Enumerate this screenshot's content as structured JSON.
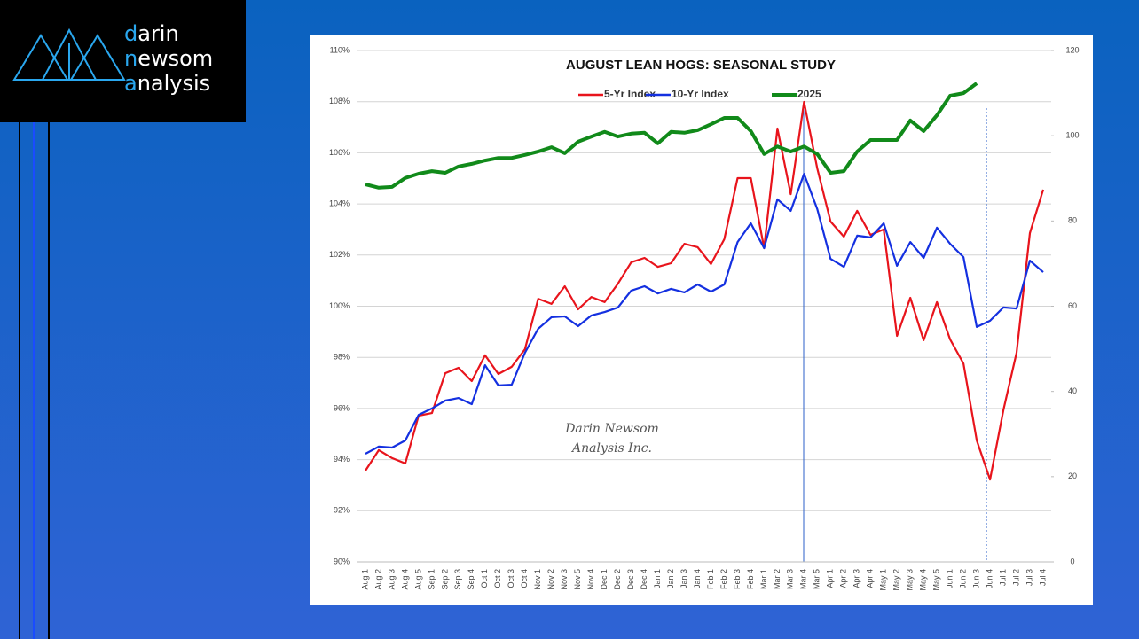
{
  "logo": {
    "lines": [
      "darin",
      "newsom",
      "analysis"
    ]
  },
  "watermark": [
    "Darin Newsom",
    "Analysis Inc."
  ],
  "chart_data": {
    "type": "line",
    "title": "AUGUST LEAN HOGS: SEASONAL STUDY",
    "categories": [
      "Aug 1",
      "Aug 2",
      "Aug 3",
      "Aug 4",
      "Aug 5",
      "Sep 1",
      "Sep 2",
      "Sep 3",
      "Sep 4",
      "Oct 1",
      "Oct 2",
      "Oct 3",
      "Oct 4",
      "Nov 1",
      "Nov 2",
      "Nov 3",
      "Nov 5",
      "Nov 4",
      "Dec 1",
      "Dec 2",
      "Dec 3",
      "Dec 4",
      "Jan 1",
      "Jan 2",
      "Jan 3",
      "Jan 4",
      "Feb 1",
      "Feb 2",
      "Feb 3",
      "Feb 4",
      "Mar 1",
      "Mar 2",
      "Mar 3",
      "Mar 4",
      "Mar 5",
      "Apr 1",
      "Apr 2",
      "Apr 3",
      "Apr 4",
      "May 1",
      "May 2",
      "May 3",
      "May 4",
      "May 5",
      "Jun 1",
      "Jun 2",
      "Jun 3",
      "Jun 4",
      "Jul 1",
      "Jul 2",
      "Jul 3",
      "Jul 4"
    ],
    "series": [
      {
        "name": "5-Yr Index",
        "color": "#e8141c",
        "values": [
          93.57,
          94.37,
          94.06,
          93.85,
          95.72,
          95.82,
          97.38,
          97.59,
          97.07,
          98.08,
          97.35,
          97.63,
          98.32,
          100.29,
          100.09,
          100.78,
          99.88,
          100.36,
          100.16,
          100.88,
          101.72,
          101.89,
          101.54,
          101.68,
          102.44,
          102.31,
          101.65,
          102.62,
          105.01,
          105.01,
          102.27,
          106.95,
          104.38,
          107.99,
          105.39,
          103.31,
          102.72,
          103.73,
          102.79,
          103.0,
          98.84,
          100.33,
          98.67,
          100.16,
          98.7,
          97.76,
          94.75,
          93.22,
          95.93,
          98.18,
          102.86,
          104.56
        ]
      },
      {
        "name": "10-Yr Index",
        "color": "#1430e0",
        "values": [
          94.23,
          94.51,
          94.47,
          94.75,
          95.75,
          96.0,
          96.31,
          96.41,
          96.17,
          97.69,
          96.9,
          96.93,
          98.18,
          99.12,
          99.57,
          99.6,
          99.22,
          99.64,
          99.77,
          99.95,
          100.61,
          100.78,
          100.5,
          100.68,
          100.54,
          100.85,
          100.57,
          100.85,
          102.51,
          103.24,
          102.27,
          104.18,
          103.73,
          105.18,
          103.8,
          101.85,
          101.54,
          102.76,
          102.69,
          103.24,
          101.58,
          102.51,
          101.89,
          103.07,
          102.44,
          101.92,
          99.19,
          99.43,
          99.95,
          99.91,
          101.78,
          101.33
        ]
      },
      {
        "name": "2025",
        "color": "#118a1a",
        "axis": "y2",
        "values": [
          88.6,
          87.8,
          88.0,
          90.1,
          91.1,
          91.7,
          91.3,
          92.8,
          93.4,
          94.2,
          94.8,
          94.8,
          95.5,
          96.3,
          97.3,
          95.9,
          98.6,
          99.8,
          100.9,
          99.8,
          100.5,
          100.7,
          98.2,
          100.9,
          100.7,
          101.3,
          102.7,
          104.2,
          104.2,
          101.1,
          95.7,
          97.5,
          96.3,
          97.5,
          95.7,
          91.3,
          91.7,
          96.3,
          99.0,
          99.0,
          99.0,
          103.6,
          101.1,
          104.8,
          109.4,
          110.0,
          112.3,
          null,
          null,
          null,
          null,
          null
        ]
      }
    ],
    "ylim": [
      90,
      110
    ],
    "yticks": [
      {
        "value": 90,
        "label": "90%"
      },
      {
        "value": 92,
        "label": "92%"
      },
      {
        "value": 94,
        "label": "94%"
      },
      {
        "value": 96,
        "label": "96%"
      },
      {
        "value": 98,
        "label": "98%"
      },
      {
        "value": 100,
        "label": "100%"
      },
      {
        "value": 102,
        "label": "102%"
      },
      {
        "value": 104,
        "label": "104%"
      },
      {
        "value": 106,
        "label": "106%"
      },
      {
        "value": 108,
        "label": "108%"
      },
      {
        "value": 110,
        "label": "110%"
      }
    ],
    "y2lim": [
      0,
      120
    ],
    "y2ticks": [
      0,
      20,
      40,
      60,
      80,
      100,
      120
    ],
    "grid": true,
    "legend": "top"
  }
}
